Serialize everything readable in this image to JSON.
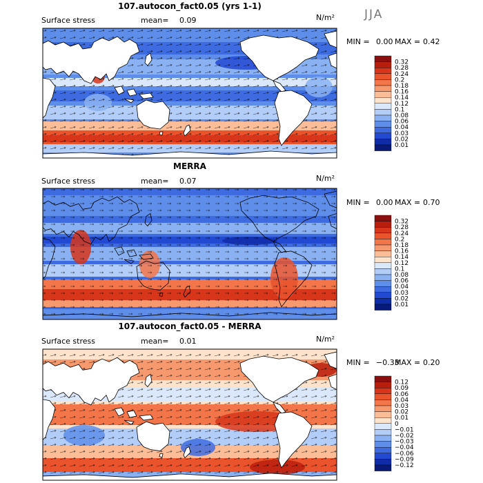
{
  "season": "JJA",
  "panels": [
    {
      "title": "107.autocon_fact0.05 (yrs 1-1)",
      "label": "Surface stress",
      "mean_label": "mean=",
      "mean_value": "0.09",
      "units": "N/m²",
      "min_label": "MIN =",
      "min_value": "0.00",
      "max_label": "MAX =",
      "max_value": "0.42"
    },
    {
      "title": "MERRA",
      "label": "Surface stress",
      "mean_label": "mean=",
      "mean_value": "0.07",
      "units": "N/m²",
      "min_label": "MIN =",
      "min_value": "0.00",
      "max_label": "MAX =",
      "max_value": "0.70"
    },
    {
      "title": "107.autocon_fact0.05 - MERRA",
      "label": "Surface stress",
      "mean_label": "mean=",
      "mean_value": "0.01",
      "units": "N/m²",
      "min_label": "MIN =",
      "min_value": "−0.33",
      "max_label": "MAX =",
      "max_value": "0.20"
    }
  ],
  "chart_data": [
    {
      "type": "heatmap",
      "title": "107.autocon_fact0.05 (yrs 1-1)",
      "variable": "Surface stress",
      "units": "N/m²",
      "mean": 0.09,
      "min": 0.0,
      "max": 0.42,
      "x": "longitude 30E-390E (Pacific centred)",
      "y": "latitude 80S-90N",
      "colorbar_levels": [
        "0.32",
        "0.28",
        "0.24",
        "0.2",
        "0.18",
        "0.16",
        "0.14",
        "0.12",
        "0.1",
        "0.08",
        "0.06",
        "0.04",
        "0.03",
        "0.02",
        "0.01"
      ],
      "colorbar_colors": [
        "#8c0f0f",
        "#b81e0d",
        "#d7361b",
        "#e9542d",
        "#f2764a",
        "#f7996e",
        "#fbbd98",
        "#fde3cc",
        "#dbe8fb",
        "#b2cdf7",
        "#8ab1f1",
        "#5f8eea",
        "#3e6ce0",
        "#2249d2",
        "#102da9",
        "#071a7a"
      ]
    },
    {
      "type": "heatmap",
      "title": "MERRA",
      "variable": "Surface stress",
      "units": "N/m²",
      "mean": 0.07,
      "min": 0.0,
      "max": 0.7,
      "colorbar_levels": [
        "0.32",
        "0.28",
        "0.24",
        "0.2",
        "0.18",
        "0.16",
        "0.14",
        "0.12",
        "0.1",
        "0.08",
        "0.06",
        "0.04",
        "0.03",
        "0.02",
        "0.01"
      ],
      "colorbar_colors": [
        "#8c0f0f",
        "#b81e0d",
        "#d7361b",
        "#e9542d",
        "#f2764a",
        "#f7996e",
        "#fbbd98",
        "#fde3cc",
        "#dbe8fb",
        "#b2cdf7",
        "#8ab1f1",
        "#5f8eea",
        "#3e6ce0",
        "#2249d2",
        "#102da9",
        "#071a7a"
      ]
    },
    {
      "type": "heatmap",
      "title": "107.autocon_fact0.05 - MERRA",
      "variable": "Surface stress",
      "units": "N/m²",
      "mean": 0.01,
      "min": -0.33,
      "max": 0.2,
      "colorbar_levels": [
        "0.12",
        "0.09",
        "0.06",
        "0.04",
        "0.03",
        "0.02",
        "0.01",
        "0",
        "−0.01",
        "−0.02",
        "−0.03",
        "−0.04",
        "−0.06",
        "−0.09",
        "−0.12"
      ],
      "colorbar_colors": [
        "#8c0f0f",
        "#b81e0d",
        "#d7361b",
        "#e9542d",
        "#f2764a",
        "#f7996e",
        "#fbbd98",
        "#fde3cc",
        "#dbe8fb",
        "#b2cdf7",
        "#8ab1f1",
        "#5f8eea",
        "#3e6ce0",
        "#2249d2",
        "#102da9",
        "#071a7a"
      ]
    }
  ]
}
